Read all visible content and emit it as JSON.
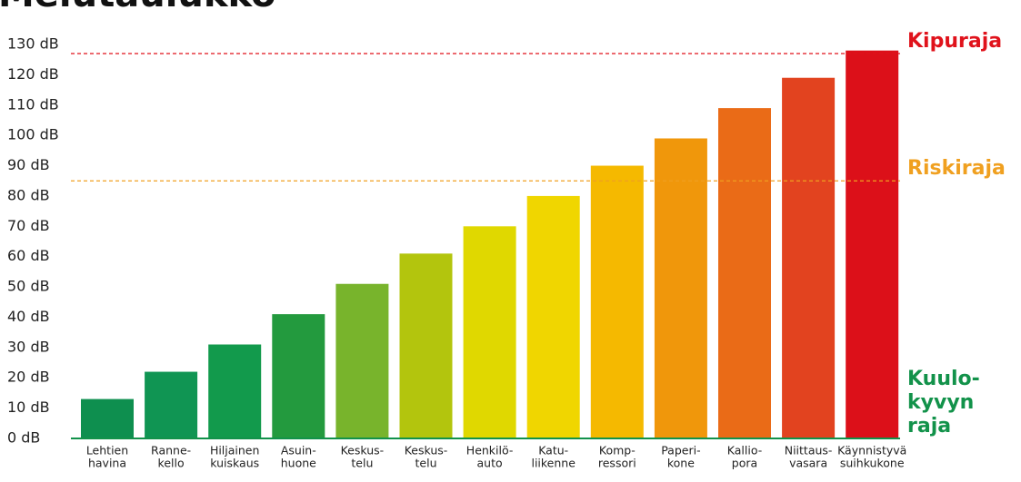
{
  "chart_data": {
    "type": "bar",
    "title": "Melutaulukko",
    "categories": [
      [
        "Lehtien",
        "havina"
      ],
      [
        "Ranne-",
        "kello"
      ],
      [
        "Hiljainen",
        "kuiskaus"
      ],
      [
        "Asuin-",
        "huone"
      ],
      [
        "Keskus-",
        "telu"
      ],
      [
        "Keskus-",
        "telu"
      ],
      [
        "Henkilö-",
        "auto"
      ],
      [
        "Katu-",
        "liikenne"
      ],
      [
        "Komp-",
        "ressori"
      ],
      [
        "Paperi-",
        "kone"
      ],
      [
        "Kallio-",
        "pora"
      ],
      [
        "Niittaus-",
        "vasara"
      ],
      [
        "Käynnistyvä",
        "suihkukone"
      ]
    ],
    "values": [
      13,
      22,
      31,
      41,
      51,
      61,
      70,
      80,
      90,
      99,
      109,
      119,
      128
    ],
    "colors": [
      "#0e8f4f",
      "#109553",
      "#129a4c",
      "#239a3e",
      "#78b42c",
      "#b3c50d",
      "#e0d800",
      "#f0d600",
      "#f5b900",
      "#f0970b",
      "#ea6b17",
      "#e2431f",
      "#dc1019"
    ],
    "ylim": [
      0,
      130
    ],
    "yticks": [
      {
        "value": 0,
        "label": "0 dB"
      },
      {
        "value": 10,
        "label": "10 dB"
      },
      {
        "value": 20,
        "label": "20 dB"
      },
      {
        "value": 30,
        "label": "30 dB"
      },
      {
        "value": 40,
        "label": "40 dB"
      },
      {
        "value": 50,
        "label": "50 dB"
      },
      {
        "value": 60,
        "label": "60 dB"
      },
      {
        "value": 70,
        "label": "70 dB"
      },
      {
        "value": 80,
        "label": "80 dB"
      },
      {
        "value": 90,
        "label": "90 dB"
      },
      {
        "value": 100,
        "label": "100 dB"
      },
      {
        "value": 110,
        "label": "110 dB"
      },
      {
        "value": 120,
        "label": "120 dB"
      },
      {
        "value": 130,
        "label": "130 dB"
      }
    ],
    "thresholds": [
      {
        "label": [
          "Kipuraja"
        ],
        "value": 127,
        "color": "#e0121b",
        "style": "dashed"
      },
      {
        "label": [
          "Riskiraja"
        ],
        "value": 85,
        "color": "#f0a020",
        "style": "dashed"
      },
      {
        "label": [
          "Kuulo-",
          "kyvyn",
          "raja"
        ],
        "value": 0,
        "color": "#12924a",
        "style": "solid"
      }
    ]
  }
}
